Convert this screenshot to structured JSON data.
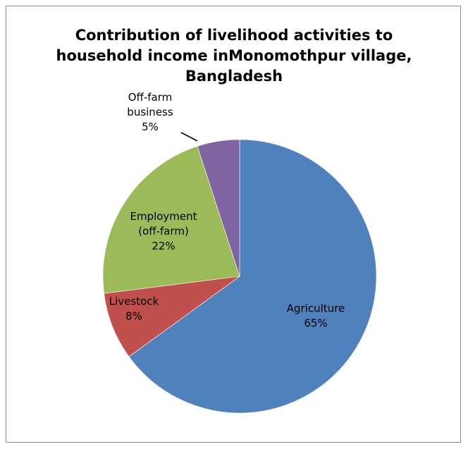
{
  "chart_data": {
    "type": "pie",
    "title_lines": [
      "Contribution of livelihood  activities to",
      "household income inMonomothpur village,",
      "Bangladesh"
    ],
    "slices": [
      {
        "name_lines": [
          "Agriculture"
        ],
        "value": 65,
        "value_label": "65%",
        "color": "#4F81BD"
      },
      {
        "name_lines": [
          "Livestock"
        ],
        "value": 8,
        "value_label": "8%",
        "color": "#C0504D"
      },
      {
        "name_lines": [
          "Employment",
          "(off-farm)"
        ],
        "value": 22,
        "value_label": "22%",
        "color": "#9BBB59"
      },
      {
        "name_lines": [
          "Off-farm",
          "business"
        ],
        "value": 5,
        "value_label": "5%",
        "color": "#8064A2"
      }
    ],
    "start": "12 o'clock",
    "direction": "clockwise",
    "legend": "none",
    "label_text_color": "#000000"
  }
}
